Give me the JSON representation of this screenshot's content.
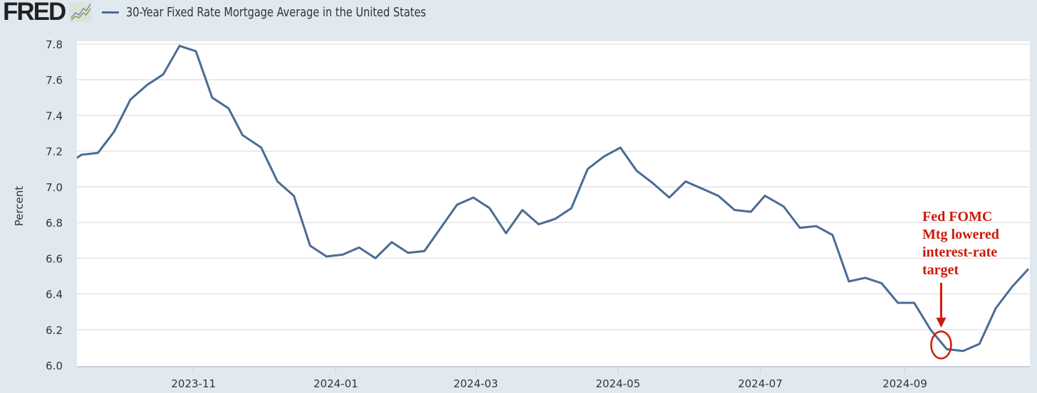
{
  "header": {
    "logo": "FRED",
    "title": "30-Year Fixed Rate Mortgage Average in the United States"
  },
  "chart_data": {
    "type": "line",
    "title": "30-Year Fixed Rate Mortgage Average in the United States",
    "xlabel": "",
    "ylabel": "Percent",
    "ylim": [
      6.0,
      7.8
    ],
    "xlim": [
      "2023-09-12",
      "2024-10-24"
    ],
    "yticks": [
      "6.0",
      "6.2",
      "6.4",
      "6.6",
      "6.8",
      "7.0",
      "7.2",
      "7.4",
      "7.6",
      "7.8"
    ],
    "xticks": [
      {
        "date": "2023-11-01",
        "label": "2023-11"
      },
      {
        "date": "2024-01-01",
        "label": "2024-01"
      },
      {
        "date": "2024-03-01",
        "label": "2024-03"
      },
      {
        "date": "2024-05-01",
        "label": "2024-05"
      },
      {
        "date": "2024-07-01",
        "label": "2024-07"
      },
      {
        "date": "2024-09-01",
        "label": "2024-09"
      }
    ],
    "grid": true,
    "line_color": "#4a6b94",
    "series": [
      {
        "name": "30-Year Fixed Rate Mortgage Average in the United States",
        "x": [
          "2023-09-07",
          "2023-09-14",
          "2023-09-21",
          "2023-09-28",
          "2023-10-05",
          "2023-10-12",
          "2023-10-19",
          "2023-10-26",
          "2023-11-02",
          "2023-11-09",
          "2023-11-16",
          "2023-11-22",
          "2023-11-30",
          "2023-12-07",
          "2023-12-14",
          "2023-12-21",
          "2023-12-28",
          "2024-01-04",
          "2024-01-11",
          "2024-01-18",
          "2024-01-25",
          "2024-02-01",
          "2024-02-08",
          "2024-02-15",
          "2024-02-22",
          "2024-02-29",
          "2024-03-07",
          "2024-03-14",
          "2024-03-21",
          "2024-03-28",
          "2024-04-04",
          "2024-04-11",
          "2024-04-18",
          "2024-04-25",
          "2024-05-02",
          "2024-05-09",
          "2024-05-16",
          "2024-05-23",
          "2024-05-30",
          "2024-06-06",
          "2024-06-13",
          "2024-06-20",
          "2024-06-27",
          "2024-07-03",
          "2024-07-11",
          "2024-07-18",
          "2024-07-25",
          "2024-08-01",
          "2024-08-08",
          "2024-08-15",
          "2024-08-22",
          "2024-08-29",
          "2024-09-05",
          "2024-09-12",
          "2024-09-19",
          "2024-09-26",
          "2024-10-03",
          "2024-10-10",
          "2024-10-17",
          "2024-10-24"
        ],
        "values": [
          7.12,
          7.18,
          7.19,
          7.31,
          7.49,
          7.57,
          7.63,
          7.79,
          7.76,
          7.5,
          7.44,
          7.29,
          7.22,
          7.03,
          6.95,
          6.67,
          6.61,
          6.62,
          6.66,
          6.6,
          6.69,
          6.63,
          6.64,
          6.77,
          6.9,
          6.94,
          6.88,
          6.74,
          6.87,
          6.79,
          6.82,
          6.88,
          7.1,
          7.17,
          7.22,
          7.09,
          7.02,
          6.94,
          7.03,
          6.99,
          6.95,
          6.87,
          6.86,
          6.95,
          6.89,
          6.77,
          6.78,
          6.73,
          6.47,
          6.49,
          6.46,
          6.35,
          6.35,
          6.2,
          6.09,
          6.08,
          6.12,
          6.32,
          6.44,
          6.54
        ]
      }
    ],
    "annotation": {
      "lines": [
        "Fed FOMC",
        "Mtg lowered",
        "interest-rate",
        "target"
      ],
      "date": "2024-09-19",
      "value": 6.09,
      "color": "#cc1a0a"
    }
  }
}
